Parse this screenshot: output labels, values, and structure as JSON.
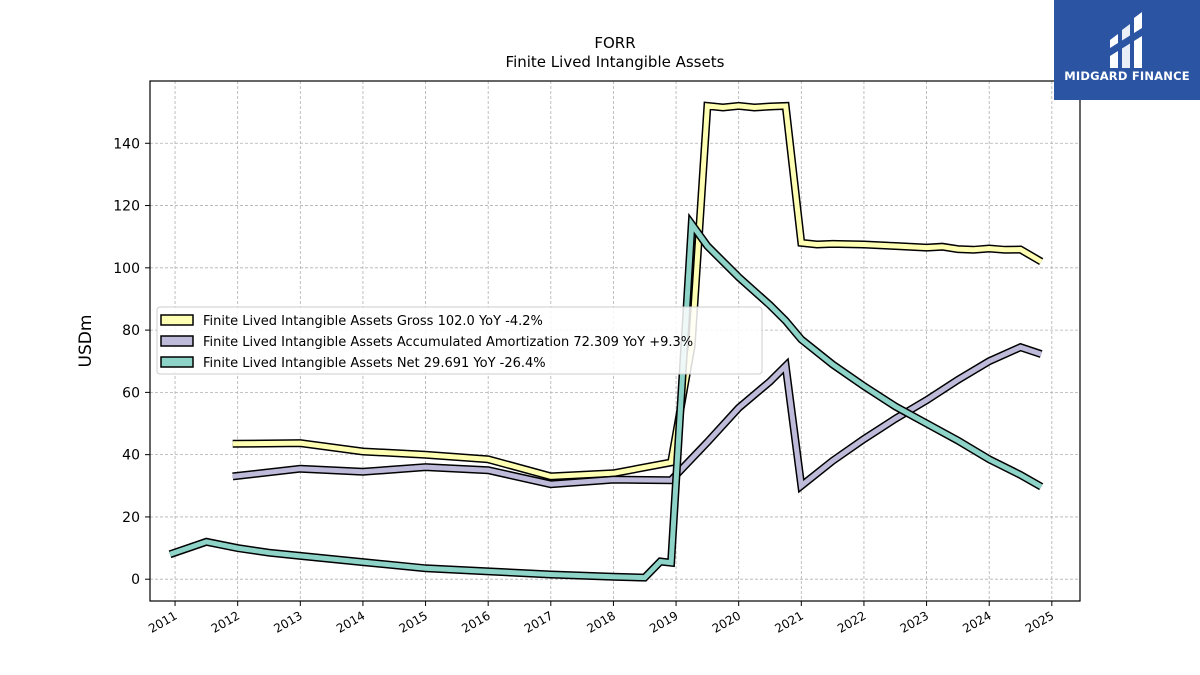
{
  "chart_data": {
    "type": "line",
    "title": "FORR",
    "subtitle": "Finite Lived Intangible Assets",
    "ylabel": "USDm",
    "xlabel": "",
    "xlim": [
      2010.6,
      2025.45
    ],
    "ylim": [
      -7,
      160
    ],
    "yticks": [
      0,
      20,
      40,
      60,
      80,
      100,
      120,
      140
    ],
    "xticks": [
      "2011",
      "2012",
      "2013",
      "2014",
      "2015",
      "2016",
      "2017",
      "2018",
      "2019",
      "2020",
      "2021",
      "2022",
      "2023",
      "2024",
      "2025"
    ],
    "grid": true,
    "legend_position": "center-left",
    "series": [
      {
        "name": "Finite Lived Intangible Assets Gross",
        "legend_label": "Finite Lived Intangible Assets Gross  102.0 YoY -4.2%",
        "color": "#ffffb3",
        "points": [
          [
            2011.92,
            43.5
          ],
          [
            2013.0,
            43.7
          ],
          [
            2014.0,
            41.0
          ],
          [
            2015.0,
            40.0
          ],
          [
            2016.0,
            38.5
          ],
          [
            2017.0,
            33.0
          ],
          [
            2018.0,
            34.0
          ],
          [
            2018.92,
            37.5
          ],
          [
            2019.25,
            75.0
          ],
          [
            2019.5,
            152.0
          ],
          [
            2019.75,
            151.5
          ],
          [
            2020.0,
            152.0
          ],
          [
            2020.25,
            151.5
          ],
          [
            2020.5,
            151.8
          ],
          [
            2020.75,
            152.0
          ],
          [
            2021.0,
            108.0
          ],
          [
            2021.25,
            107.5
          ],
          [
            2021.5,
            107.7
          ],
          [
            2022.0,
            107.5
          ],
          [
            2022.5,
            107.0
          ],
          [
            2023.0,
            106.5
          ],
          [
            2023.25,
            106.8
          ],
          [
            2023.5,
            106.0
          ],
          [
            2023.75,
            105.8
          ],
          [
            2024.0,
            106.2
          ],
          [
            2024.25,
            105.8
          ],
          [
            2024.5,
            105.9
          ],
          [
            2024.83,
            102.0
          ]
        ]
      },
      {
        "name": "Finite Lived Intangible Assets Accumulated Amortization",
        "legend_label": "Finite Lived Intangible Assets Accumulated Amortization  72.309 YoY +9.3%",
        "color": "#bebada",
        "points": [
          [
            2011.92,
            33.0
          ],
          [
            2013.0,
            35.5
          ],
          [
            2014.0,
            34.5
          ],
          [
            2015.0,
            36.0
          ],
          [
            2016.0,
            35.0
          ],
          [
            2017.0,
            30.5
          ],
          [
            2018.0,
            32.0
          ],
          [
            2018.92,
            31.8
          ],
          [
            2019.5,
            44.0
          ],
          [
            2020.0,
            55.0
          ],
          [
            2020.5,
            63.5
          ],
          [
            2020.75,
            68.5
          ],
          [
            2021.0,
            30.0
          ],
          [
            2021.5,
            38.0
          ],
          [
            2022.0,
            45.0
          ],
          [
            2022.5,
            51.5
          ],
          [
            2023.0,
            57.5
          ],
          [
            2023.5,
            64.0
          ],
          [
            2024.0,
            70.0
          ],
          [
            2024.5,
            74.5
          ],
          [
            2024.83,
            72.3
          ]
        ]
      },
      {
        "name": "Finite Lived Intangible Assets Net",
        "legend_label": "Finite Lived Intangible Assets Net  29.691 YoY -26.4%",
        "color": "#8dd3c7",
        "points": [
          [
            2010.92,
            8.0
          ],
          [
            2011.5,
            12.0
          ],
          [
            2012.0,
            10.0
          ],
          [
            2012.5,
            8.5
          ],
          [
            2013.0,
            7.5
          ],
          [
            2014.0,
            5.5
          ],
          [
            2015.0,
            3.5
          ],
          [
            2016.0,
            2.5
          ],
          [
            2017.0,
            1.5
          ],
          [
            2018.0,
            0.8
          ],
          [
            2018.5,
            0.5
          ],
          [
            2018.75,
            5.7
          ],
          [
            2018.92,
            5.3
          ],
          [
            2019.25,
            114.0
          ],
          [
            2019.5,
            107.0
          ],
          [
            2020.0,
            97.0
          ],
          [
            2020.5,
            88.0
          ],
          [
            2020.75,
            83.0
          ],
          [
            2021.0,
            77.0
          ],
          [
            2021.5,
            69.0
          ],
          [
            2022.0,
            62.0
          ],
          [
            2022.5,
            55.5
          ],
          [
            2023.0,
            50.0
          ],
          [
            2023.5,
            44.5
          ],
          [
            2024.0,
            38.5
          ],
          [
            2024.5,
            33.5
          ],
          [
            2024.83,
            29.7
          ]
        ]
      }
    ]
  },
  "brand": {
    "name": "MIDGARD FINANCE",
    "background": "#2b55a3"
  }
}
